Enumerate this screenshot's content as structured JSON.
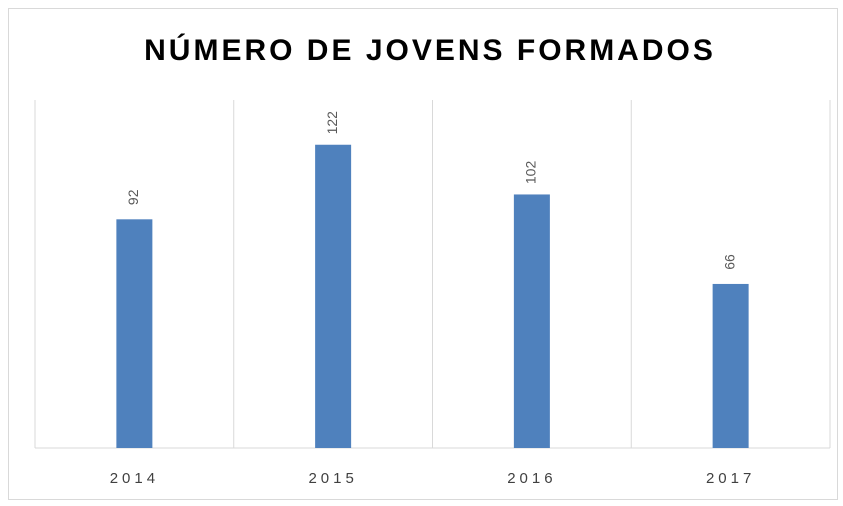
{
  "chart_data": {
    "type": "bar",
    "title": "NÚMERO DE JOVENS FORMADOS",
    "categories": [
      "2014",
      "2015",
      "2016",
      "2017"
    ],
    "values": [
      92,
      122,
      102,
      66
    ],
    "color": "#4f81bd",
    "ylim": [
      0,
      140
    ],
    "grid": true
  }
}
